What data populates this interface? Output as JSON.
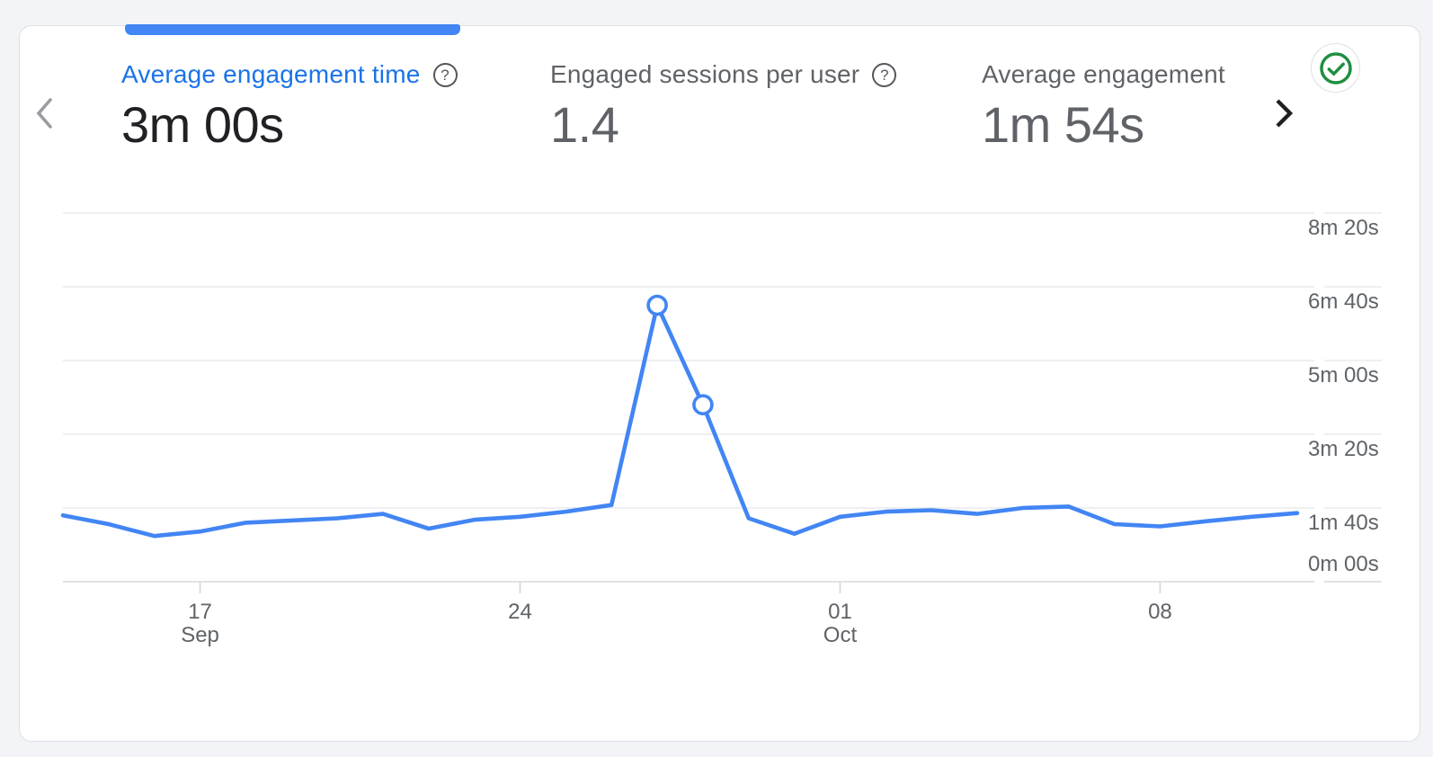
{
  "header": {
    "prev_button_label": "previous metrics",
    "next_button_label": "next metrics",
    "help_glyph": "?",
    "metrics": [
      {
        "label": "Average engagement time",
        "value": "3m 00s",
        "selected": true,
        "has_help_icon": true
      },
      {
        "label": "Engaged sessions per user",
        "value": "1.4",
        "selected": false,
        "has_help_icon": true
      },
      {
        "label": "Average engagement",
        "value": "1m 54s",
        "selected": false,
        "has_help_icon": false
      }
    ],
    "status_icon": "check-circle"
  },
  "colors": {
    "accent_blue": "#4285F4",
    "active_tab_text": "#1A73E8",
    "selected_value_text": "#202124",
    "muted_text": "#5F6368",
    "status_green": "#1E8E3E",
    "gridline": "#E8EAED",
    "axis_line": "#D6D9DD",
    "card_border": "#DDDFE3",
    "page_background": "#F3F4F8"
  },
  "chart_data": {
    "type": "line",
    "title": "Average engagement time over time",
    "xlabel": "",
    "ylabel": "",
    "grid": "horizontal-only",
    "legend": "none",
    "y_range_seconds": [
      0,
      500
    ],
    "x": [
      "Sep 14",
      "Sep 15",
      "Sep 16",
      "Sep 17",
      "Sep 18",
      "Sep 19",
      "Sep 20",
      "Sep 21",
      "Sep 22",
      "Sep 23",
      "Sep 24",
      "Sep 25",
      "Sep 26",
      "Sep 27",
      "Sep 28",
      "Sep 29",
      "Sep 30",
      "Oct 1",
      "Oct 2",
      "Oct 3",
      "Oct 4",
      "Oct 5",
      "Oct 6",
      "Oct 7",
      "Oct 8",
      "Oct 9",
      "Oct 10",
      "Oct 11"
    ],
    "series": [
      {
        "name": "Average engagement time",
        "color": "#4285F4",
        "values_seconds": [
          90,
          78,
          62,
          68,
          80,
          83,
          86,
          92,
          72,
          84,
          88,
          95,
          104,
          375,
          240,
          86,
          65,
          88,
          95,
          97,
          92,
          100,
          102,
          78,
          75,
          82,
          88,
          93
        ],
        "values_formatted": [
          "1m 30s",
          "1m 18s",
          "1m 02s",
          "1m 08s",
          "1m 20s",
          "1m 23s",
          "1m 26s",
          "1m 32s",
          "1m 12s",
          "1m 24s",
          "1m 28s",
          "1m 35s",
          "1m 44s",
          "6m 15s",
          "4m 00s",
          "1m 26s",
          "1m 05s",
          "1m 28s",
          "1m 35s",
          "1m 37s",
          "1m 32s",
          "1m 40s",
          "1m 42s",
          "1m 18s",
          "1m 15s",
          "1m 22s",
          "1m 28s",
          "1m 33s"
        ],
        "marker_indices": [
          13,
          14
        ]
      }
    ],
    "highlighted_points": [
      {
        "x": "Sep 27",
        "value": "6m 15s"
      },
      {
        "x": "Sep 28",
        "value": "4m 00s"
      }
    ],
    "y_ticks": [
      {
        "seconds": 500,
        "label": "8m 20s"
      },
      {
        "seconds": 400,
        "label": "6m 40s"
      },
      {
        "seconds": 300,
        "label": "5m 00s"
      },
      {
        "seconds": 200,
        "label": "3m 20s"
      },
      {
        "seconds": 100,
        "label": "1m 40s"
      },
      {
        "seconds": 0,
        "label": "0m 00s"
      }
    ],
    "x_ticks": [
      {
        "index": 3,
        "label": "17",
        "sublabel": "Sep"
      },
      {
        "index": 10,
        "label": "24",
        "sublabel": ""
      },
      {
        "index": 17,
        "label": "01",
        "sublabel": "Oct"
      },
      {
        "index": 24,
        "label": "08",
        "sublabel": ""
      }
    ]
  }
}
